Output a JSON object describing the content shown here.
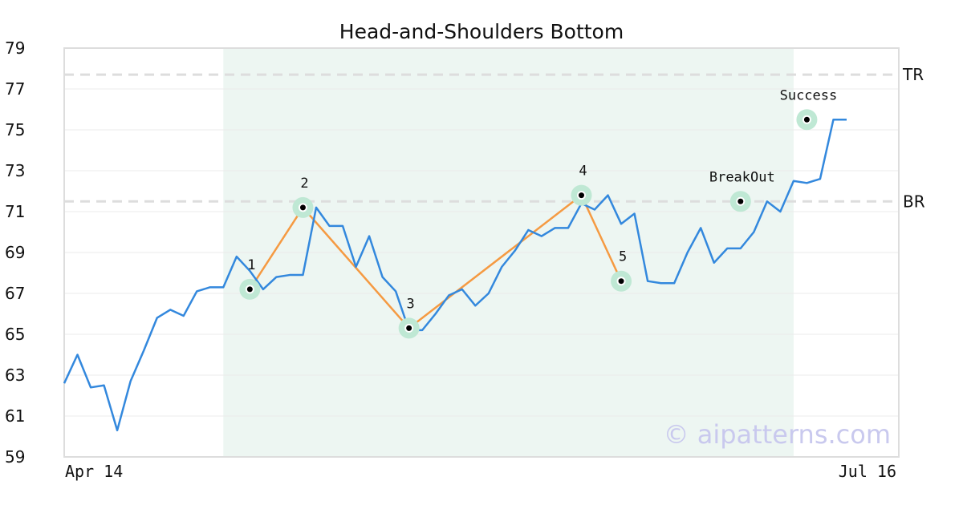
{
  "chart_data": {
    "type": "line",
    "title": "Head-and-Shoulders Bottom",
    "xlabel": "",
    "ylabel": "",
    "ylim": [
      59,
      79
    ],
    "yticks": [
      59,
      61,
      63,
      65,
      67,
      69,
      71,
      73,
      75,
      77,
      79
    ],
    "xtick_labels": [
      "Apr 14",
      "Jul 16"
    ],
    "x_range": [
      0,
      59
    ],
    "grid": "horizontal",
    "watermark": "© aipatterns.com",
    "colors": {
      "price": "#3388dd",
      "pattern": "#f59a42",
      "highlight_fill": "#edf6f2",
      "marker_halo": "#bfe8d4",
      "ref_line": "#dddddd"
    },
    "pattern_region": [
      12,
      55
    ],
    "price_series": {
      "x": [
        0,
        1,
        2,
        3,
        4,
        5,
        6,
        7,
        8,
        9,
        10,
        11,
        12,
        13,
        14,
        15,
        16,
        17,
        18,
        19,
        20,
        21,
        22,
        23,
        24,
        25,
        26,
        27,
        28,
        29,
        30,
        31,
        32,
        33,
        34,
        35,
        36,
        37,
        38,
        39,
        40,
        41,
        42,
        43,
        44,
        45,
        46,
        47,
        48,
        49,
        50,
        51,
        52,
        53,
        54,
        55,
        56,
        57,
        58,
        59
      ],
      "y": [
        62.6,
        64.0,
        62.4,
        62.5,
        60.3,
        62.7,
        64.2,
        65.8,
        66.2,
        65.9,
        67.1,
        67.3,
        67.3,
        68.8,
        68.1,
        67.2,
        67.8,
        67.9,
        67.9,
        71.2,
        70.3,
        70.3,
        68.3,
        69.8,
        67.8,
        67.1,
        65.2,
        65.2,
        66.0,
        66.9,
        67.2,
        66.4,
        67.0,
        68.3,
        69.1,
        70.1,
        69.8,
        70.2,
        70.2,
        71.4,
        71.1,
        71.8,
        70.4,
        70.9,
        67.6,
        67.5,
        67.5,
        69.0,
        70.2,
        68.5,
        69.2,
        69.2,
        70.0,
        71.5,
        71.0,
        72.5,
        72.4,
        72.6,
        75.5,
        75.5
      ]
    },
    "pattern_points": [
      {
        "label": "1",
        "x": 14,
        "y": 67.2
      },
      {
        "label": "2",
        "x": 18,
        "y": 71.2
      },
      {
        "label": "3",
        "x": 26,
        "y": 65.3
      },
      {
        "label": "4",
        "x": 39,
        "y": 71.8
      },
      {
        "label": "5",
        "x": 42,
        "y": 67.6
      }
    ],
    "signal_points": [
      {
        "label": "BreakOut",
        "x": 51,
        "y": 71.5
      },
      {
        "label": "Success",
        "x": 56,
        "y": 75.5
      }
    ],
    "reference_lines": [
      {
        "label": "TR",
        "y": 77.7
      },
      {
        "label": "BR",
        "y": 71.5
      }
    ]
  }
}
